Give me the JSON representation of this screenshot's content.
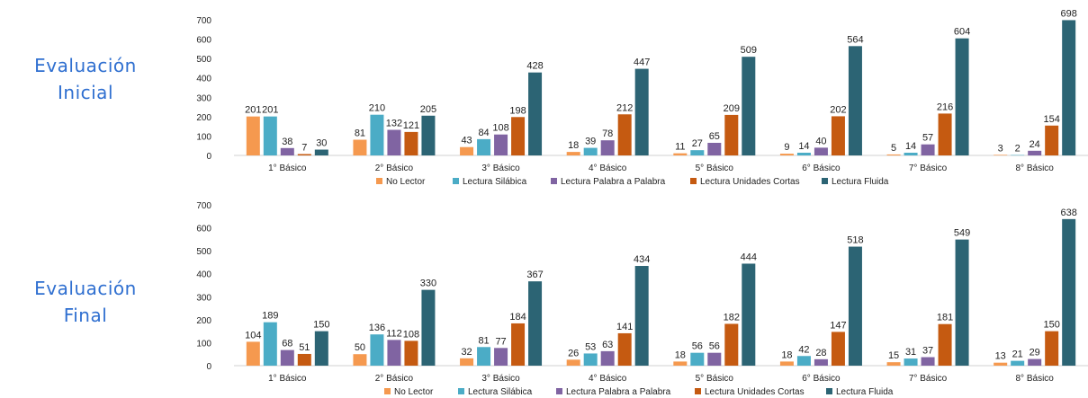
{
  "labels": {
    "initial": [
      "Evaluación",
      "Inicial"
    ],
    "final": [
      "Evaluación",
      "Final"
    ]
  },
  "chart_data": [
    {
      "type": "bar",
      "ylim": [
        0,
        700
      ],
      "yticks": [
        0,
        100,
        200,
        300,
        400,
        500,
        600,
        700
      ],
      "grid": false,
      "legend_position": "bottom",
      "categories": [
        "1° Básico",
        "2° Básico",
        "3° Básico",
        "4° Básico",
        "5° Básico",
        "6° Básico",
        "7° Básico",
        "8° Básico"
      ],
      "series": [
        {
          "name": "No Lector",
          "color": "#f5994f",
          "values": [
            201,
            81,
            43,
            18,
            11,
            9,
            5,
            3
          ]
        },
        {
          "name": "Lectura Silábica",
          "color": "#4bacc6",
          "values": [
            201,
            210,
            84,
            39,
            27,
            14,
            14,
            2
          ]
        },
        {
          "name": "Lectura Palabra a Palabra",
          "color": "#8064a2",
          "values": [
            38,
            132,
            108,
            78,
            65,
            40,
            57,
            24
          ]
        },
        {
          "name": "Lectura Unidades Cortas",
          "color": "#c55a11",
          "values": [
            7,
            121,
            198,
            212,
            209,
            202,
            216,
            154
          ]
        },
        {
          "name": "Lectura Fluida",
          "color": "#2c6474",
          "values": [
            30,
            205,
            428,
            447,
            509,
            564,
            604,
            698
          ]
        }
      ]
    },
    {
      "type": "bar",
      "ylim": [
        0,
        700
      ],
      "yticks": [
        0,
        100,
        200,
        300,
        400,
        500,
        600,
        700
      ],
      "grid": false,
      "legend_position": "bottom",
      "categories": [
        "1° Básico",
        "2° Básico",
        "3° Básico",
        "4° Básico",
        "5° Básico",
        "6° Básico",
        "7° Básico",
        "8° Básico"
      ],
      "series": [
        {
          "name": "No Lector",
          "color": "#f5994f",
          "values": [
            104,
            50,
            32,
            26,
            18,
            18,
            15,
            13
          ]
        },
        {
          "name": "Lectura Silábica",
          "color": "#4bacc6",
          "values": [
            189,
            136,
            81,
            53,
            56,
            42,
            31,
            21
          ]
        },
        {
          "name": "Lectura Palabra a Palabra",
          "color": "#8064a2",
          "values": [
            68,
            112,
            77,
            63,
            56,
            28,
            37,
            29
          ]
        },
        {
          "name": "Lectura Unidades Cortas",
          "color": "#c55a11",
          "values": [
            51,
            108,
            184,
            141,
            182,
            147,
            181,
            150
          ]
        },
        {
          "name": "Lectura Fluida",
          "color": "#2c6474",
          "values": [
            150,
            330,
            367,
            434,
            444,
            518,
            549,
            638
          ]
        }
      ]
    }
  ]
}
